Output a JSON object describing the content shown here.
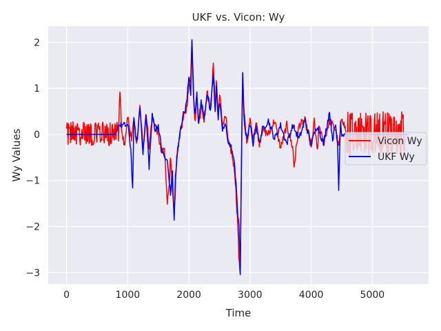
{
  "chart_data": {
    "type": "line",
    "title": "UKF vs. Vicon: Wy",
    "xlabel": "Time",
    "ylabel": "Wy Values",
    "xlim": [
      -300,
      5920
    ],
    "ylim": [
      -3.25,
      2.35
    ],
    "xticks": [
      0,
      1000,
      2000,
      3000,
      4000,
      5000
    ],
    "yticks": [
      -3,
      -2,
      -1,
      0,
      1,
      2
    ],
    "grid": true,
    "legend_position": "center-right",
    "series": [
      {
        "name": "Vicon Wy",
        "color": "#ff0000",
        "noise_bands": [
          {
            "x_start": 0,
            "x_end": 850,
            "amplitude": 0.25
          },
          {
            "x_start": 4580,
            "x_end": 5530,
            "amplitude": 0.5
          }
        ],
        "x": [
          0,
          100,
          200,
          300,
          400,
          500,
          600,
          700,
          800,
          850,
          870,
          900,
          950,
          1000,
          1030,
          1060,
          1100,
          1150,
          1200,
          1250,
          1300,
          1350,
          1400,
          1450,
          1500,
          1550,
          1600,
          1620,
          1650,
          1680,
          1700,
          1730,
          1760,
          1800,
          1850,
          1900,
          1950,
          2000,
          2030,
          2050,
          2070,
          2100,
          2130,
          2160,
          2200,
          2250,
          2300,
          2350,
          2400,
          2430,
          2450,
          2480,
          2500,
          2550,
          2600,
          2650,
          2700,
          2750,
          2780,
          2800,
          2820,
          2840,
          2860,
          2880,
          2900,
          2920,
          2950,
          3000,
          3050,
          3100,
          3150,
          3200,
          3300,
          3400,
          3500,
          3600,
          3700,
          3720,
          3800,
          3900,
          4000,
          4050,
          4100,
          4130,
          4200,
          4300,
          4400,
          4450,
          4500,
          4580,
          5530,
          5560
        ],
        "values": [
          0.0,
          0.05,
          0.0,
          0.05,
          0.0,
          0.0,
          0.05,
          0.0,
          0.05,
          0.0,
          1.0,
          0.1,
          -0.3,
          0.4,
          0.1,
          -0.1,
          0.3,
          -0.2,
          0.6,
          -0.3,
          0.5,
          -0.3,
          0.4,
          0.2,
          0.0,
          -0.4,
          -0.3,
          -0.8,
          -1.5,
          -1.0,
          -0.5,
          -1.2,
          -1.8,
          -0.5,
          0.0,
          0.3,
          0.5,
          1.0,
          1.3,
          2.1,
          1.0,
          0.3,
          0.8,
          0.2,
          0.6,
          0.3,
          1.0,
          0.5,
          1.5,
          0.6,
          1.2,
          0.4,
          0.9,
          0.2,
          0.4,
          -0.2,
          -0.4,
          -0.8,
          -1.5,
          -2.0,
          -2.8,
          -3.0,
          -0.5,
          1.35,
          0.5,
          0.2,
          -0.2,
          0.3,
          -0.1,
          0.3,
          -0.2,
          0.1,
          0.0,
          0.3,
          -0.3,
          0.2,
          -0.3,
          -0.7,
          0.2,
          0.3,
          -0.3,
          0.3,
          -0.4,
          0.2,
          -0.2,
          0.3,
          0.1,
          -0.3,
          0.4,
          0.0,
          0.0,
          0.0
        ]
      },
      {
        "name": "UKF Wy",
        "color": "#0000ff",
        "x": [
          0,
          200,
          400,
          600,
          800,
          850,
          900,
          950,
          1000,
          1050,
          1080,
          1100,
          1150,
          1200,
          1250,
          1300,
          1350,
          1400,
          1450,
          1500,
          1550,
          1600,
          1650,
          1700,
          1730,
          1760,
          1780,
          1800,
          1850,
          1900,
          1950,
          2000,
          2030,
          2050,
          2080,
          2100,
          2130,
          2160,
          2200,
          2250,
          2300,
          2350,
          2400,
          2430,
          2450,
          2480,
          2500,
          2550,
          2600,
          2650,
          2700,
          2750,
          2780,
          2800,
          2820,
          2840,
          2860,
          2880,
          2900,
          2920,
          2950,
          3000,
          3050,
          3100,
          3150,
          3200,
          3300,
          3400,
          3500,
          3600,
          3700,
          3800,
          3900,
          4000,
          4100,
          4200,
          4300,
          4350,
          4400,
          4430,
          4450,
          4480,
          4500,
          4600,
          4700,
          4800,
          5000,
          5200,
          5400,
          5600
        ],
        "values": [
          0.0,
          0.0,
          0.0,
          0.0,
          0.0,
          0.2,
          0.2,
          0.2,
          0.2,
          -0.3,
          -1.2,
          0.3,
          -0.2,
          0.6,
          -0.4,
          0.4,
          -0.7,
          0.4,
          0.1,
          0.2,
          -0.3,
          -0.5,
          -0.6,
          -1.3,
          -0.8,
          -1.9,
          -0.9,
          -0.6,
          0.0,
          0.4,
          0.6,
          1.2,
          0.9,
          2.0,
          0.8,
          0.4,
          0.9,
          0.3,
          0.7,
          0.4,
          0.9,
          0.5,
          1.3,
          0.5,
          1.1,
          0.3,
          0.7,
          0.1,
          0.2,
          -0.2,
          -0.3,
          -0.7,
          -1.2,
          -1.8,
          -2.0,
          -3.0,
          -0.6,
          1.3,
          0.4,
          0.1,
          -0.1,
          0.2,
          -0.2,
          0.2,
          -0.2,
          0.1,
          0.3,
          -0.1,
          0.2,
          -0.2,
          0.2,
          -0.1,
          0.3,
          -0.2,
          0.2,
          -0.2,
          0.5,
          -0.1,
          0.2,
          -0.2,
          -1.15,
          0.3,
          0.0,
          0.0,
          0.0,
          0.0,
          0.0,
          0.0,
          0.0,
          0.0
        ]
      }
    ]
  }
}
